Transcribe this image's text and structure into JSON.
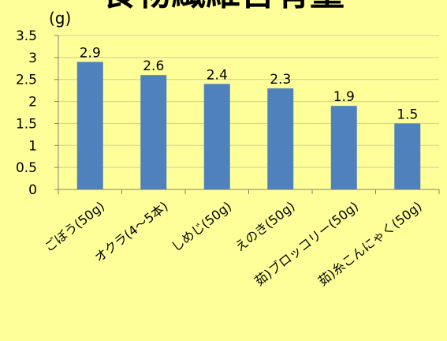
{
  "chart_data": {
    "type": "bar",
    "title": "食物繊維含有量",
    "unit_label": "(g)",
    "categories": [
      "ごぼう(50g)",
      "オクラ(4～5本)",
      "しめじ(50g)",
      "えのき(50g)",
      "茹)ブロッコリー(50g)",
      "茹)糸こんにゃく(50g)"
    ],
    "series": [
      {
        "values": [
          2.9,
          2.6,
          2.4,
          2.3,
          1.9,
          1.5
        ]
      }
    ],
    "data_labels": [
      "2.9",
      "2.6",
      "2.4",
      "2.3",
      "1.9",
      "1.5"
    ],
    "y_ticks": [
      "0",
      "0.5",
      "1",
      "1.5",
      "2",
      "2.5",
      "3",
      "3.5"
    ],
    "ylim": [
      0,
      3.5
    ],
    "grid": true,
    "bar_color": "#4f81bd",
    "background_color": "#ffff99",
    "grid_color": "#c8c8c8"
  }
}
